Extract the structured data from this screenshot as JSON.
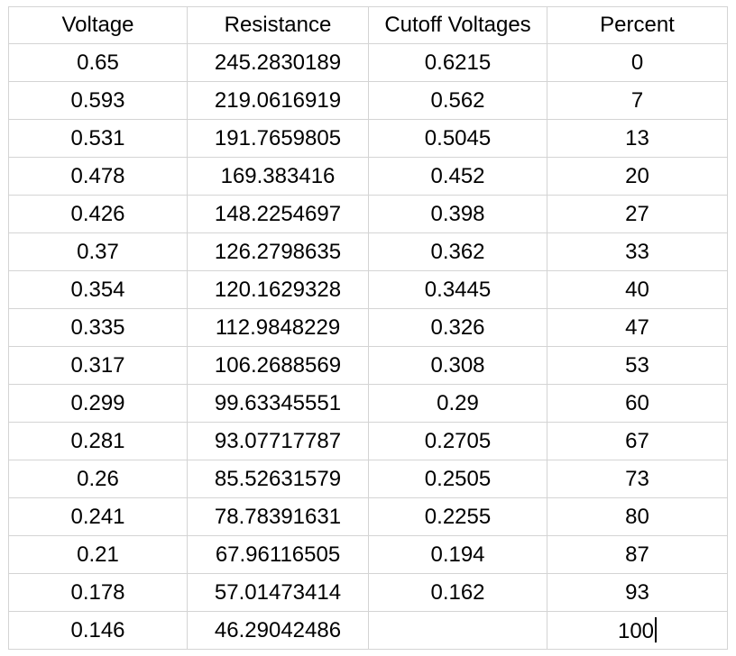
{
  "table": {
    "headers": [
      "Voltage",
      "Resistance",
      "Cutoff Voltages",
      "Percent"
    ],
    "rows": [
      [
        "0.65",
        "245.2830189",
        "0.6215",
        "0"
      ],
      [
        "0.593",
        "219.0616919",
        "0.562",
        "7"
      ],
      [
        "0.531",
        "191.7659805",
        "0.5045",
        "13"
      ],
      [
        "0.478",
        "169.383416",
        "0.452",
        "20"
      ],
      [
        "0.426",
        "148.2254697",
        "0.398",
        "27"
      ],
      [
        "0.37",
        "126.2798635",
        "0.362",
        "33"
      ],
      [
        "0.354",
        "120.1629328",
        "0.3445",
        "40"
      ],
      [
        "0.335",
        "112.9848229",
        "0.326",
        "47"
      ],
      [
        "0.317",
        "106.2688569",
        "0.308",
        "53"
      ],
      [
        "0.299",
        "99.63345551",
        "0.29",
        "60"
      ],
      [
        "0.281",
        "93.07717787",
        "0.2705",
        "67"
      ],
      [
        "0.26",
        "85.52631579",
        "0.2505",
        "73"
      ],
      [
        "0.241",
        "78.78391631",
        "0.2255",
        "80"
      ],
      [
        "0.21",
        "67.96116505",
        "0.194",
        "87"
      ],
      [
        "0.178",
        "57.01473414",
        "0.162",
        "93"
      ],
      [
        "0.146",
        "46.29042486",
        "",
        "100"
      ]
    ],
    "active_cell": {
      "row": 15,
      "col": 3
    }
  },
  "colors": {
    "grid_line": "#d4d4d4",
    "text": "#000000",
    "background": "#ffffff"
  }
}
